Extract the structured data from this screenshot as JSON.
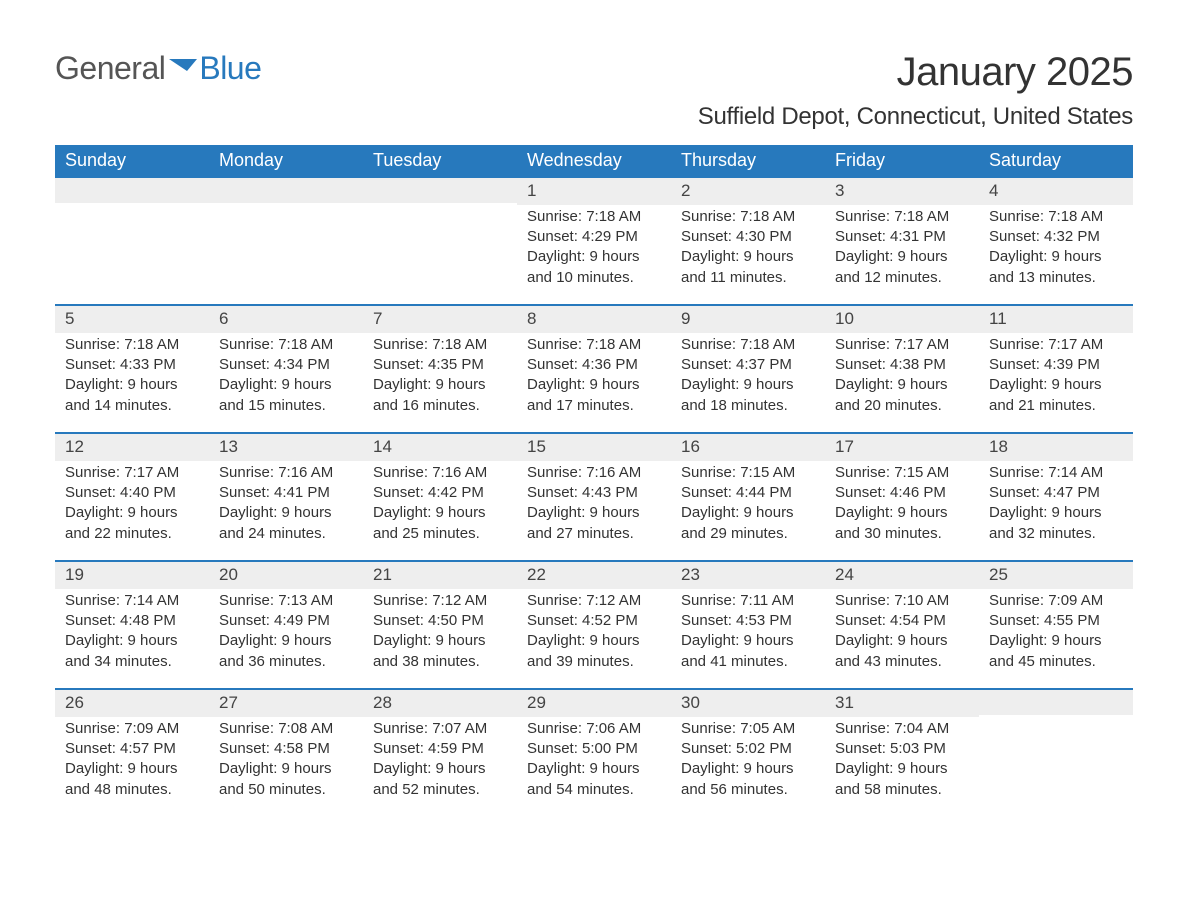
{
  "logo": {
    "part1": "General",
    "part2": "Blue"
  },
  "title": "January 2025",
  "subtitle": "Suffield Depot, Connecticut, United States",
  "colors": {
    "header_bg": "#2779bd",
    "header_text": "#ffffff",
    "daybar_bg": "#eeeeee",
    "body_text": "#333333",
    "page_bg": "#ffffff",
    "logo_gray": "#555555",
    "logo_blue": "#2779bd"
  },
  "typography": {
    "title_size_pt": 30,
    "subtitle_size_pt": 18,
    "header_cell_size_pt": 13,
    "body_size_pt": 11
  },
  "weekdays": [
    "Sunday",
    "Monday",
    "Tuesday",
    "Wednesday",
    "Thursday",
    "Friday",
    "Saturday"
  ],
  "weeks": [
    [
      null,
      null,
      null,
      {
        "day": "1",
        "sunrise": "Sunrise: 7:18 AM",
        "sunset": "Sunset: 4:29 PM",
        "daylight1": "Daylight: 9 hours",
        "daylight2": "and 10 minutes."
      },
      {
        "day": "2",
        "sunrise": "Sunrise: 7:18 AM",
        "sunset": "Sunset: 4:30 PM",
        "daylight1": "Daylight: 9 hours",
        "daylight2": "and 11 minutes."
      },
      {
        "day": "3",
        "sunrise": "Sunrise: 7:18 AM",
        "sunset": "Sunset: 4:31 PM",
        "daylight1": "Daylight: 9 hours",
        "daylight2": "and 12 minutes."
      },
      {
        "day": "4",
        "sunrise": "Sunrise: 7:18 AM",
        "sunset": "Sunset: 4:32 PM",
        "daylight1": "Daylight: 9 hours",
        "daylight2": "and 13 minutes."
      }
    ],
    [
      {
        "day": "5",
        "sunrise": "Sunrise: 7:18 AM",
        "sunset": "Sunset: 4:33 PM",
        "daylight1": "Daylight: 9 hours",
        "daylight2": "and 14 minutes."
      },
      {
        "day": "6",
        "sunrise": "Sunrise: 7:18 AM",
        "sunset": "Sunset: 4:34 PM",
        "daylight1": "Daylight: 9 hours",
        "daylight2": "and 15 minutes."
      },
      {
        "day": "7",
        "sunrise": "Sunrise: 7:18 AM",
        "sunset": "Sunset: 4:35 PM",
        "daylight1": "Daylight: 9 hours",
        "daylight2": "and 16 minutes."
      },
      {
        "day": "8",
        "sunrise": "Sunrise: 7:18 AM",
        "sunset": "Sunset: 4:36 PM",
        "daylight1": "Daylight: 9 hours",
        "daylight2": "and 17 minutes."
      },
      {
        "day": "9",
        "sunrise": "Sunrise: 7:18 AM",
        "sunset": "Sunset: 4:37 PM",
        "daylight1": "Daylight: 9 hours",
        "daylight2": "and 18 minutes."
      },
      {
        "day": "10",
        "sunrise": "Sunrise: 7:17 AM",
        "sunset": "Sunset: 4:38 PM",
        "daylight1": "Daylight: 9 hours",
        "daylight2": "and 20 minutes."
      },
      {
        "day": "11",
        "sunrise": "Sunrise: 7:17 AM",
        "sunset": "Sunset: 4:39 PM",
        "daylight1": "Daylight: 9 hours",
        "daylight2": "and 21 minutes."
      }
    ],
    [
      {
        "day": "12",
        "sunrise": "Sunrise: 7:17 AM",
        "sunset": "Sunset: 4:40 PM",
        "daylight1": "Daylight: 9 hours",
        "daylight2": "and 22 minutes."
      },
      {
        "day": "13",
        "sunrise": "Sunrise: 7:16 AM",
        "sunset": "Sunset: 4:41 PM",
        "daylight1": "Daylight: 9 hours",
        "daylight2": "and 24 minutes."
      },
      {
        "day": "14",
        "sunrise": "Sunrise: 7:16 AM",
        "sunset": "Sunset: 4:42 PM",
        "daylight1": "Daylight: 9 hours",
        "daylight2": "and 25 minutes."
      },
      {
        "day": "15",
        "sunrise": "Sunrise: 7:16 AM",
        "sunset": "Sunset: 4:43 PM",
        "daylight1": "Daylight: 9 hours",
        "daylight2": "and 27 minutes."
      },
      {
        "day": "16",
        "sunrise": "Sunrise: 7:15 AM",
        "sunset": "Sunset: 4:44 PM",
        "daylight1": "Daylight: 9 hours",
        "daylight2": "and 29 minutes."
      },
      {
        "day": "17",
        "sunrise": "Sunrise: 7:15 AM",
        "sunset": "Sunset: 4:46 PM",
        "daylight1": "Daylight: 9 hours",
        "daylight2": "and 30 minutes."
      },
      {
        "day": "18",
        "sunrise": "Sunrise: 7:14 AM",
        "sunset": "Sunset: 4:47 PM",
        "daylight1": "Daylight: 9 hours",
        "daylight2": "and 32 minutes."
      }
    ],
    [
      {
        "day": "19",
        "sunrise": "Sunrise: 7:14 AM",
        "sunset": "Sunset: 4:48 PM",
        "daylight1": "Daylight: 9 hours",
        "daylight2": "and 34 minutes."
      },
      {
        "day": "20",
        "sunrise": "Sunrise: 7:13 AM",
        "sunset": "Sunset: 4:49 PM",
        "daylight1": "Daylight: 9 hours",
        "daylight2": "and 36 minutes."
      },
      {
        "day": "21",
        "sunrise": "Sunrise: 7:12 AM",
        "sunset": "Sunset: 4:50 PM",
        "daylight1": "Daylight: 9 hours",
        "daylight2": "and 38 minutes."
      },
      {
        "day": "22",
        "sunrise": "Sunrise: 7:12 AM",
        "sunset": "Sunset: 4:52 PM",
        "daylight1": "Daylight: 9 hours",
        "daylight2": "and 39 minutes."
      },
      {
        "day": "23",
        "sunrise": "Sunrise: 7:11 AM",
        "sunset": "Sunset: 4:53 PM",
        "daylight1": "Daylight: 9 hours",
        "daylight2": "and 41 minutes."
      },
      {
        "day": "24",
        "sunrise": "Sunrise: 7:10 AM",
        "sunset": "Sunset: 4:54 PM",
        "daylight1": "Daylight: 9 hours",
        "daylight2": "and 43 minutes."
      },
      {
        "day": "25",
        "sunrise": "Sunrise: 7:09 AM",
        "sunset": "Sunset: 4:55 PM",
        "daylight1": "Daylight: 9 hours",
        "daylight2": "and 45 minutes."
      }
    ],
    [
      {
        "day": "26",
        "sunrise": "Sunrise: 7:09 AM",
        "sunset": "Sunset: 4:57 PM",
        "daylight1": "Daylight: 9 hours",
        "daylight2": "and 48 minutes."
      },
      {
        "day": "27",
        "sunrise": "Sunrise: 7:08 AM",
        "sunset": "Sunset: 4:58 PM",
        "daylight1": "Daylight: 9 hours",
        "daylight2": "and 50 minutes."
      },
      {
        "day": "28",
        "sunrise": "Sunrise: 7:07 AM",
        "sunset": "Sunset: 4:59 PM",
        "daylight1": "Daylight: 9 hours",
        "daylight2": "and 52 minutes."
      },
      {
        "day": "29",
        "sunrise": "Sunrise: 7:06 AM",
        "sunset": "Sunset: 5:00 PM",
        "daylight1": "Daylight: 9 hours",
        "daylight2": "and 54 minutes."
      },
      {
        "day": "30",
        "sunrise": "Sunrise: 7:05 AM",
        "sunset": "Sunset: 5:02 PM",
        "daylight1": "Daylight: 9 hours",
        "daylight2": "and 56 minutes."
      },
      {
        "day": "31",
        "sunrise": "Sunrise: 7:04 AM",
        "sunset": "Sunset: 5:03 PM",
        "daylight1": "Daylight: 9 hours",
        "daylight2": "and 58 minutes."
      },
      null
    ]
  ]
}
